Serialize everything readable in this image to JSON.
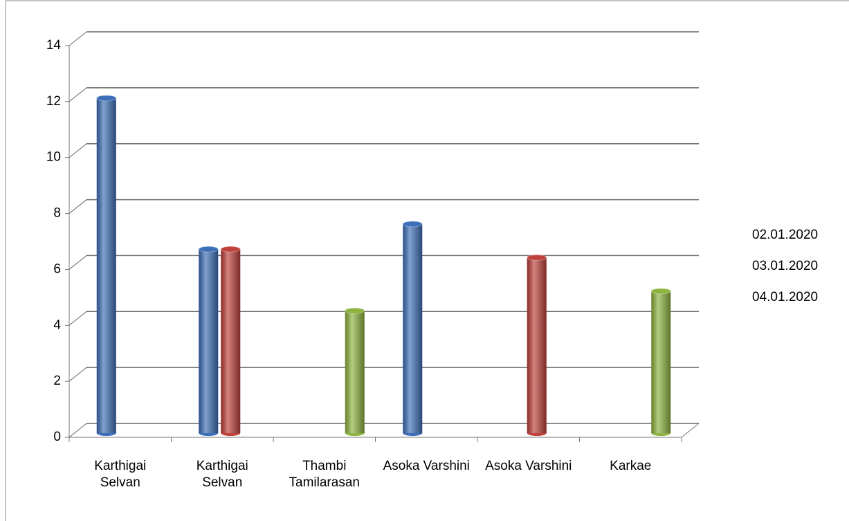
{
  "chart_data": {
    "type": "bar",
    "categories": [
      "Karthigai Selvan",
      "Karthigai Selvan",
      "Thambi Tamilarasan",
      "Asoka Varshini",
      "Asoka Varshini",
      "Karkae"
    ],
    "series": [
      {
        "name": "02.01.2020",
        "color": "#3d6fb8",
        "values": [
          12,
          6.6,
          null,
          7.5,
          null,
          null
        ]
      },
      {
        "name": "03.01.2020",
        "color": "#c0413c",
        "values": [
          null,
          6.6,
          null,
          null,
          6.3,
          null
        ]
      },
      {
        "name": "04.01.2020",
        "color": "#8db43e",
        "values": [
          null,
          null,
          4.4,
          null,
          null,
          5.1
        ]
      }
    ],
    "ylim": [
      0,
      14
    ],
    "yticks": [
      0,
      2,
      4,
      6,
      8,
      10,
      12,
      14
    ],
    "grid": true,
    "legend": "right"
  }
}
